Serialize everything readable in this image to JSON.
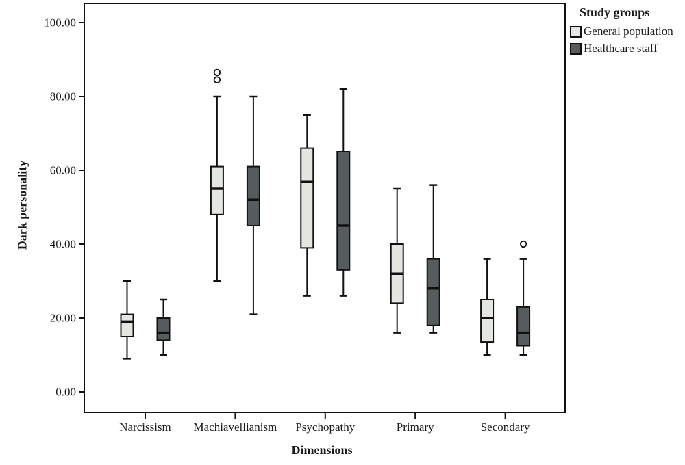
{
  "figure": {
    "background": "#ffffff",
    "axis_color": "#111111",
    "text_color": "#1a1a1a"
  },
  "chart_data": {
    "type": "boxplot",
    "title": "",
    "xlabel": "Dimensions",
    "ylabel": "Dark personality",
    "ylim": [
      0,
      100
    ],
    "ytick_step": 20,
    "ytick_labels": [
      "0.00",
      "20.00",
      "40.00",
      "60.00",
      "80.00",
      "100.00"
    ],
    "grid": false,
    "legend_title": "Study groups",
    "legend_position": "top-right-outside",
    "categories": [
      "Narcissism",
      "Machiavellianism",
      "Psychopathy",
      "Primary",
      "Secondary"
    ],
    "series": [
      {
        "name": "General population",
        "color": "#e4e6e2",
        "boxes": [
          {
            "category": "Narcissism",
            "min": 9,
            "q1": 15,
            "median": 19,
            "q3": 21,
            "max": 30,
            "outliers": []
          },
          {
            "category": "Machiavellianism",
            "min": 30,
            "q1": 48,
            "median": 55,
            "q3": 61,
            "max": 80,
            "outliers": [
              84.5,
              86.5
            ]
          },
          {
            "category": "Psychopathy",
            "min": 26,
            "q1": 39,
            "median": 57,
            "q3": 66,
            "max": 75,
            "outliers": []
          },
          {
            "category": "Primary",
            "min": 16,
            "q1": 24,
            "median": 32,
            "q3": 40,
            "max": 55,
            "outliers": []
          },
          {
            "category": "Secondary",
            "min": 10,
            "q1": 13.5,
            "median": 20,
            "q3": 25,
            "max": 36,
            "outliers": []
          }
        ]
      },
      {
        "name": "Healthcare staff",
        "color": "#565c5e",
        "boxes": [
          {
            "category": "Narcissism",
            "min": 10,
            "q1": 14,
            "median": 16,
            "q3": 20,
            "max": 25,
            "outliers": []
          },
          {
            "category": "Machiavellianism",
            "min": 21,
            "q1": 45,
            "median": 52,
            "q3": 61,
            "max": 80,
            "outliers": []
          },
          {
            "category": "Psychopathy",
            "min": 26,
            "q1": 33,
            "median": 45,
            "q3": 65,
            "max": 82,
            "outliers": []
          },
          {
            "category": "Primary",
            "min": 16,
            "q1": 18,
            "median": 28,
            "q3": 36,
            "max": 56,
            "outliers": []
          },
          {
            "category": "Secondary",
            "min": 10,
            "q1": 12.5,
            "median": 16,
            "q3": 23,
            "max": 36,
            "outliers": [
              40
            ]
          }
        ]
      }
    ]
  }
}
